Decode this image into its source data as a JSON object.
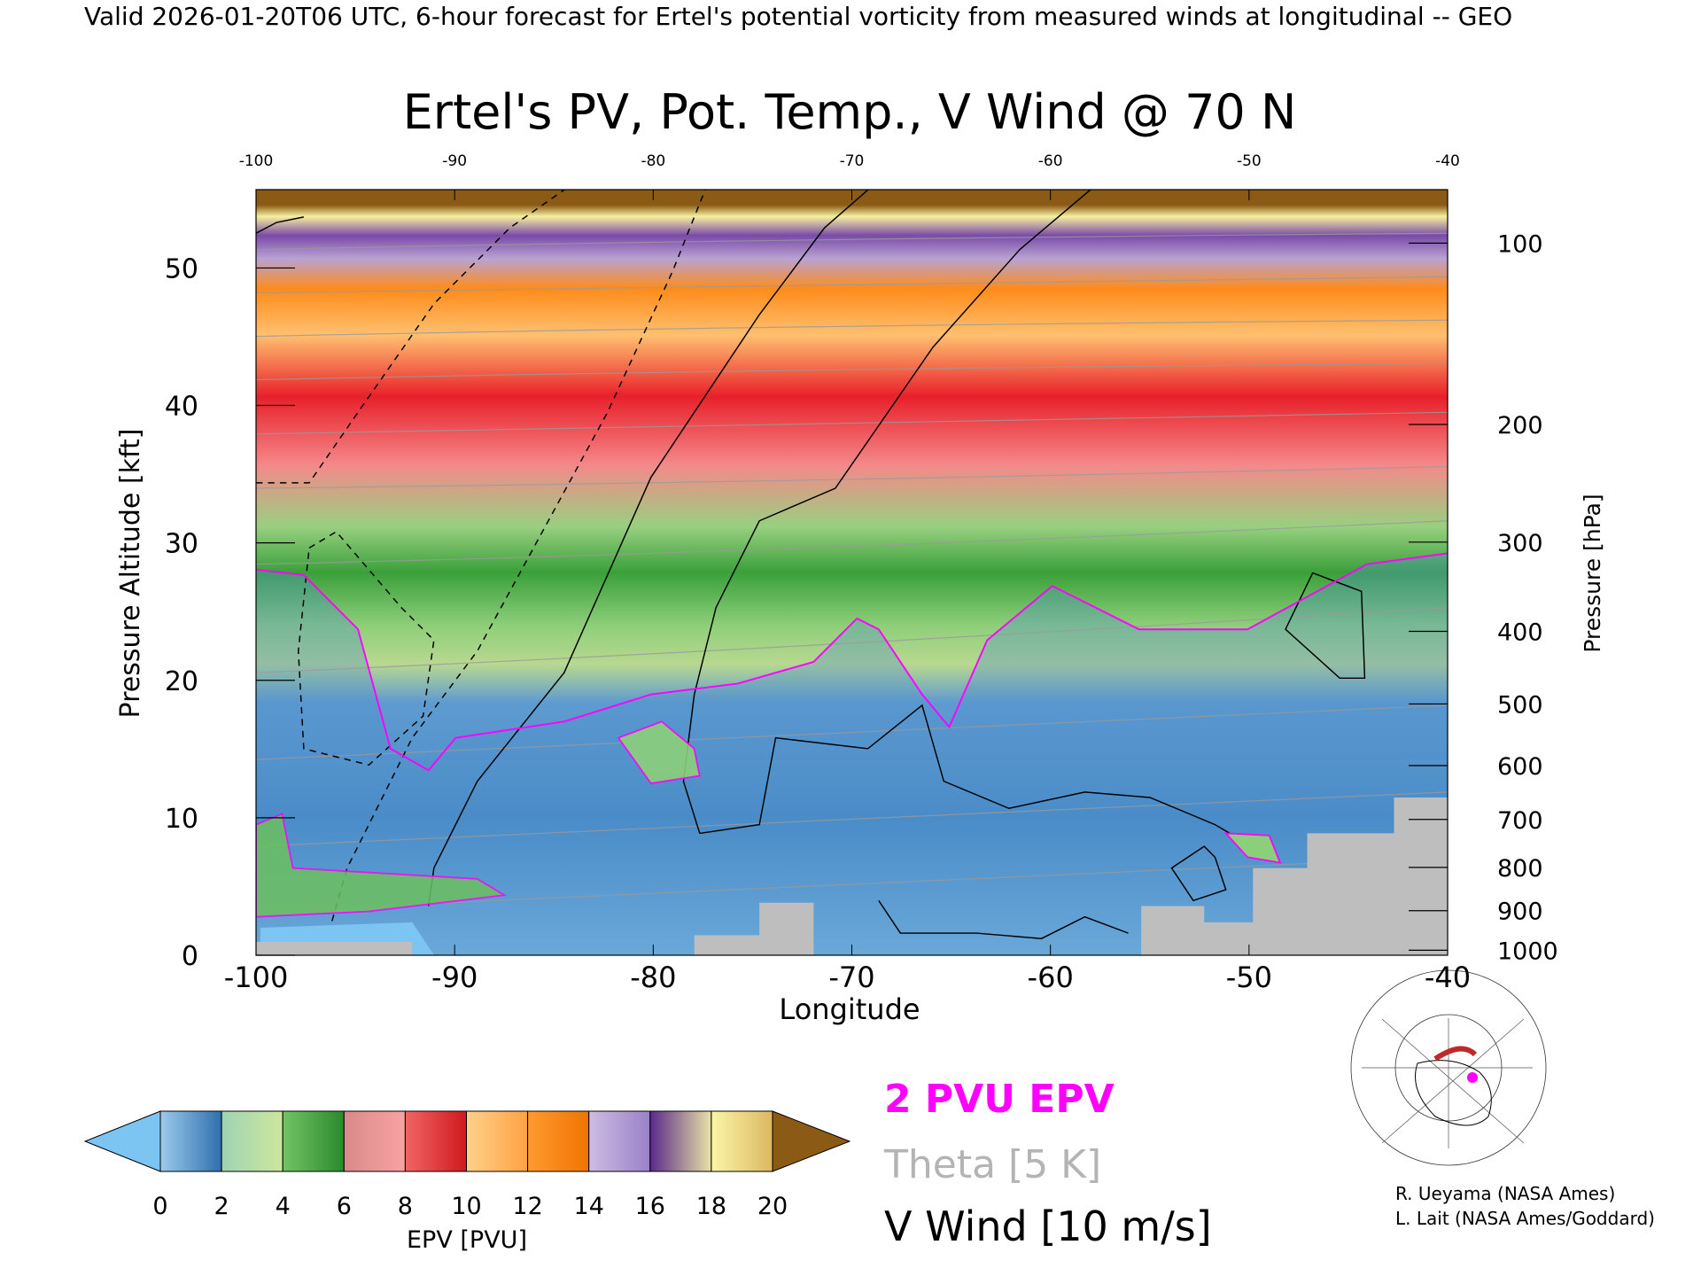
{
  "chart_data": {
    "type": "contour",
    "header": "Valid 2026-01-20T06 UTC, 6-hour forecast for Ertel's potential vorticity from measured winds at longitudinal -- GEO",
    "title": "Ertel's PV, Pot. Temp., V Wind @ 70 N",
    "x_label": "Longitude",
    "y_label": "Pressure Altitude [kft]",
    "y2_label": "Pressure [hPa]",
    "xlim": [
      -100,
      -40
    ],
    "xticks": [
      -100,
      -90,
      -80,
      -70,
      -60,
      -50,
      -40
    ],
    "ylim": [
      0,
      55.7
    ],
    "yticks": [
      0,
      10,
      20,
      30,
      40,
      50
    ],
    "y2_scale": "pressure altitude",
    "y2ticks": [
      100,
      200,
      300,
      400,
      500,
      600,
      700,
      800,
      900,
      1000
    ],
    "colorbar": {
      "label": "EPV [PVU]",
      "levels": [
        0,
        2,
        4,
        6,
        8,
        10,
        12,
        14,
        16,
        18,
        20
      ],
      "colors": [
        [
          "#9ccbeb",
          "#2f6fae"
        ],
        [
          "#9fd3b4",
          "#cde79c"
        ],
        [
          "#73c466",
          "#2a8a2c"
        ],
        [
          "#d98a8a",
          "#f9a2a2"
        ],
        [
          "#f26464",
          "#cf1a1e"
        ],
        [
          "#ffd08a",
          "#ffa244"
        ],
        [
          "#ff9a30",
          "#f07400"
        ],
        [
          "#cdbde2",
          "#9a80c8"
        ],
        [
          "#5a2a8a",
          "#e8e2a6"
        ],
        [
          "#faf6a8",
          "#dcb860"
        ]
      ],
      "under_color": "#7cc4f2",
      "over_color": "#8b5a14"
    },
    "legend": [
      {
        "name": "2 PVU EPV",
        "color": "#ff00ff"
      },
      {
        "name": "Theta [5 K]",
        "color": "#b4b4b4"
      },
      {
        "name": "V Wind [10 m/s]",
        "color": "#000000"
      }
    ],
    "credits": [
      "R. Ueyama (NASA Ames)",
      "L. Lait (NASA Ames/Goddard)"
    ]
  }
}
